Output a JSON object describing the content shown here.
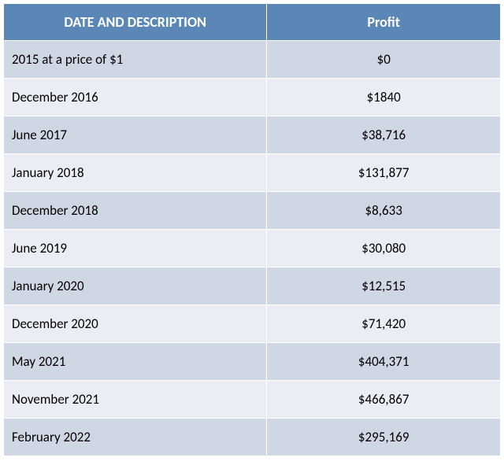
{
  "table": {
    "header_bg": "#5b87b6",
    "header_fg": "#ffffff",
    "row_odd_bg": "#d0d7e4",
    "row_even_bg": "#eaedf3",
    "text_color": "#000000",
    "border_color": "#ffffff",
    "col_widths_pct": [
      53,
      47
    ],
    "col_align": [
      "left",
      "center"
    ],
    "header_fontsize": 18,
    "cell_fontsize": 17,
    "columns": [
      "DATE AND DESCRIPTION",
      "Profit"
    ],
    "rows": [
      [
        "2015 at a price of $1",
        "$0"
      ],
      [
        "December 2016",
        "$1840"
      ],
      [
        "June 2017",
        "$38,716"
      ],
      [
        "January 2018",
        "$131,877"
      ],
      [
        "December 2018",
        "$8,633"
      ],
      [
        "June 2019",
        "$30,080"
      ],
      [
        "January 2020",
        "$12,515"
      ],
      [
        "December 2020",
        "$71,420"
      ],
      [
        "May 2021",
        "$404,371"
      ],
      [
        "November 2021",
        "$466,867"
      ],
      [
        "February 2022",
        "$295,169"
      ]
    ]
  }
}
